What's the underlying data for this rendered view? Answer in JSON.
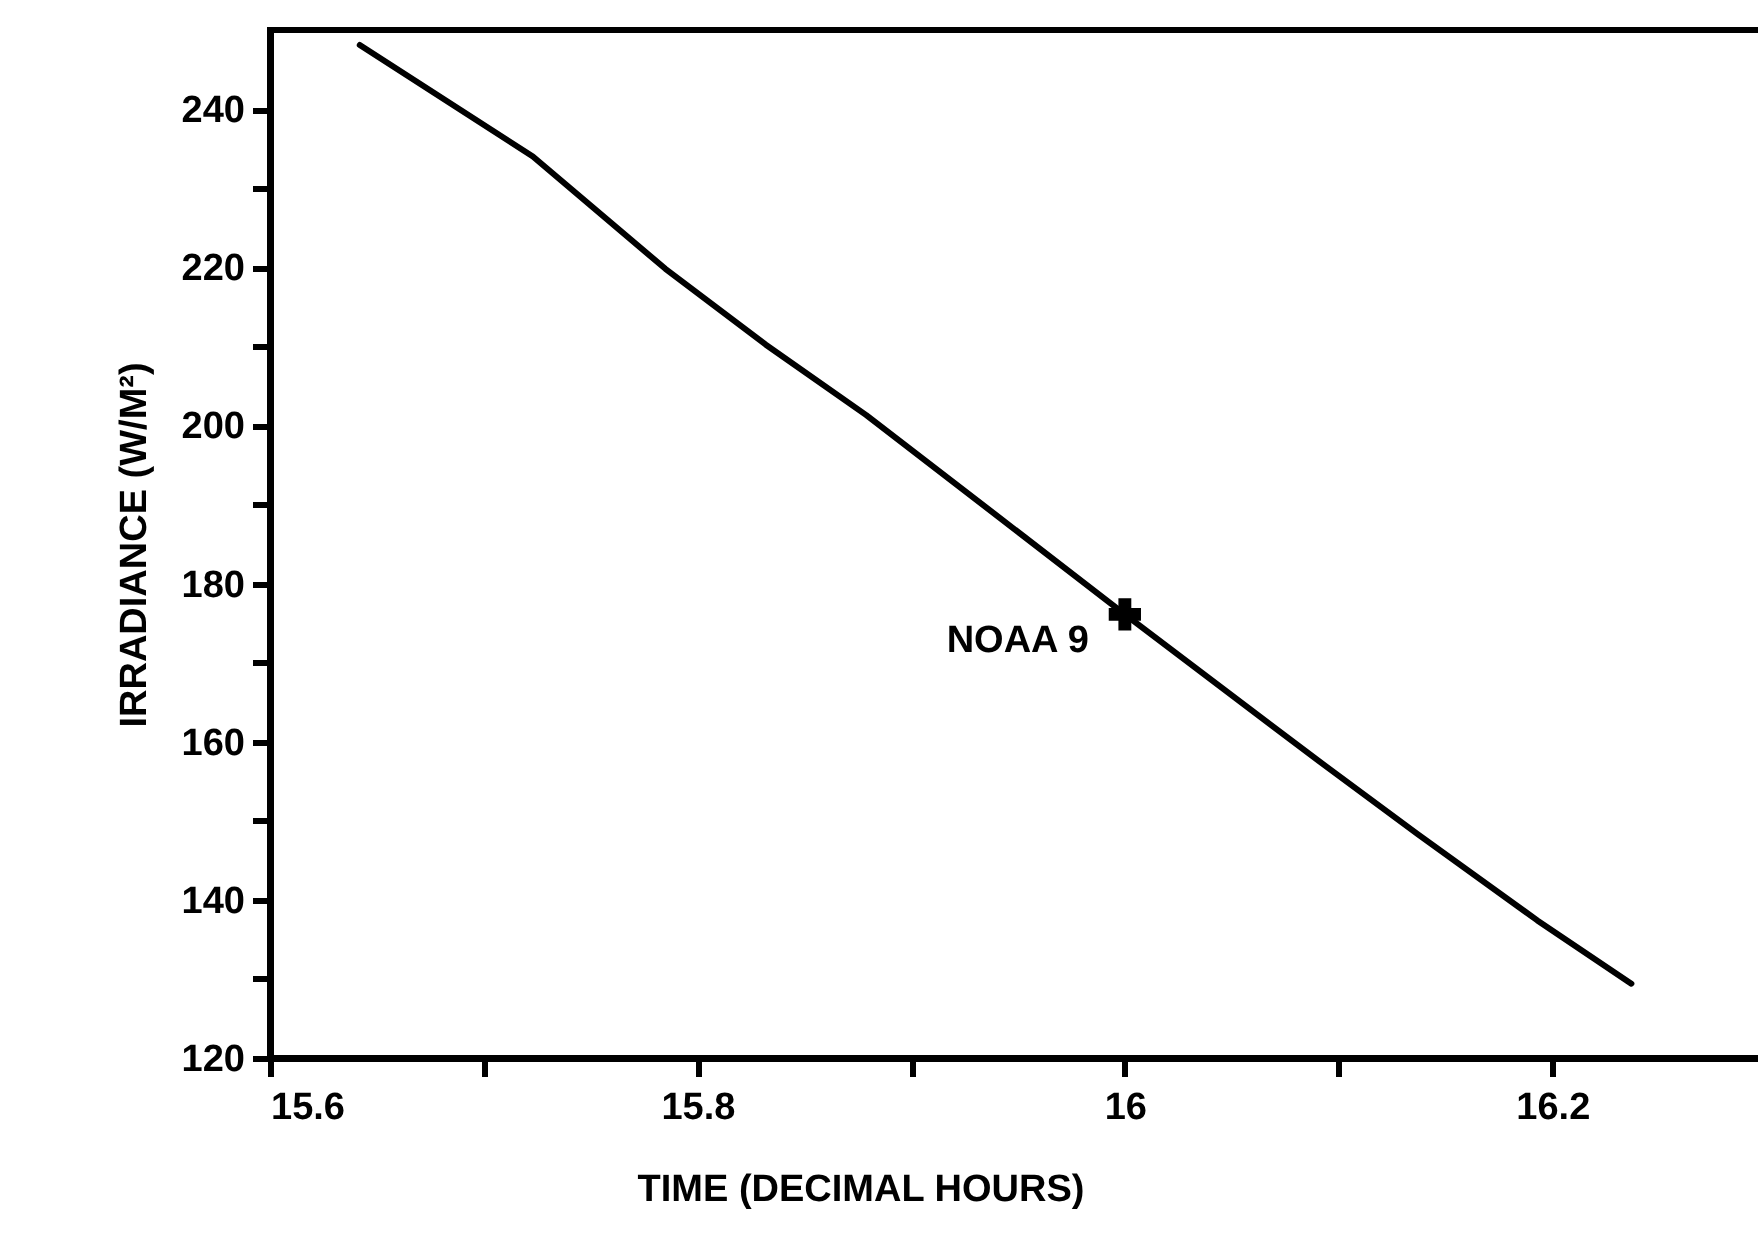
{
  "chart_data": {
    "type": "line",
    "xlabel": "TIME (DECIMAL HOURS)",
    "ylabel": "IRRADIANCE (W/M²)",
    "xlim": [
      15.6,
      16.3
    ],
    "ylim": [
      120,
      250
    ],
    "xticks": [
      15.6,
      {
        "value": 15.7,
        "label": null
      },
      15.8,
      {
        "value": 15.9,
        "label": null
      },
      16,
      {
        "value": 16.1,
        "label": null
      },
      16.2
    ],
    "yticks": [
      120,
      {
        "value": 130,
        "label": null
      },
      140,
      {
        "value": 150,
        "label": null
      },
      160,
      {
        "value": 170,
        "label": null
      },
      180,
      {
        "value": 190,
        "label": null
      },
      200,
      {
        "value": 210,
        "label": null
      },
      220,
      {
        "value": 230,
        "label": null
      },
      240
    ],
    "series": [
      {
        "color": "#000000",
        "x": [
          15.642,
          15.723,
          15.785,
          15.832,
          15.879,
          15.941,
          16.0,
          16.091,
          16.137,
          16.193,
          16.237
        ],
        "values": [
          248.1,
          234.0,
          219.8,
          210.2,
          201.3,
          188.4,
          176.1,
          157.5,
          148.3,
          137.4,
          129.4
        ]
      },
      {
        "type": "scatter",
        "color": "#000000",
        "marker": "cross",
        "x": [
          16.0
        ],
        "values": [
          176.1
        ]
      }
    ],
    "annotations": [
      {
        "text": "NOAA 9",
        "x": 16.0,
        "y": 176.1
      }
    ],
    "grid": false
  }
}
